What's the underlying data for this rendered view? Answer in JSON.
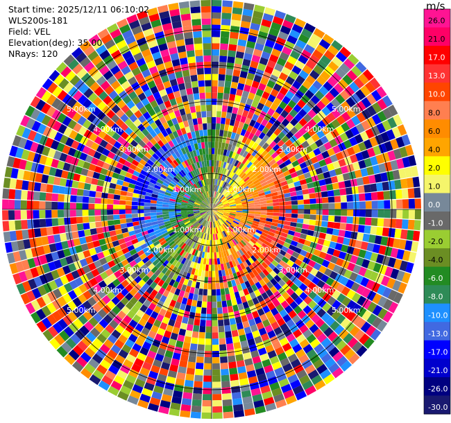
{
  "header": {
    "start_time": "Start time: 2025/12/11 06:10:02",
    "instrument": "WLS200s-181",
    "field": "Field: VEL",
    "elevation": "Elevation(deg): 35.00",
    "nrays": "NRays: 120"
  },
  "colorbar": {
    "unit": "m/s",
    "ticks": [
      "26.0",
      "21.0",
      "17.0",
      "13.0",
      "10.0",
      "8.0",
      "6.0",
      "4.0",
      "2.0",
      "1.0",
      "0.0",
      "-1.0",
      "-2.0",
      "-4.0",
      "-6.0",
      "-8.0",
      "-10.0",
      "-13.0",
      "-17.0",
      "-21.0",
      "-26.0",
      "-30.0"
    ],
    "colors": [
      "#ff1493",
      "#ff0066",
      "#ff0000",
      "#ff3333",
      "#ff4500",
      "#ff7f50",
      "#ff8c00",
      "#ffa500",
      "#ffff00",
      "#f5f56b",
      "#778899",
      "#696969",
      "#9acd32",
      "#6b8e23",
      "#228b22",
      "#2e8b57",
      "#1e90ff",
      "#4169e1",
      "#0000ff",
      "#0000cd",
      "#000080",
      "#191970"
    ]
  },
  "chart_data": {
    "type": "ppi",
    "field": "VEL",
    "units": "m/s",
    "nrays": 120,
    "elevation_deg": 35.0,
    "range_rings_km": [
      1.0,
      2.0,
      3.0,
      4.0,
      5.0
    ],
    "ring_labels": [
      "1.00km",
      "2.00km",
      "3.00km",
      "4.00km",
      "5.00km"
    ],
    "grid": true
  }
}
